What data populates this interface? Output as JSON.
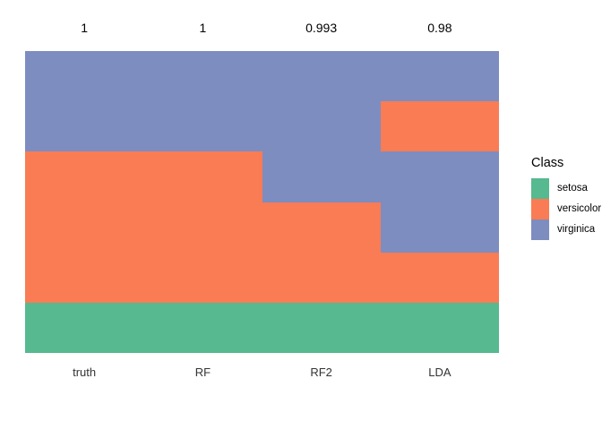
{
  "chart_data": {
    "type": "heatmap",
    "description": "Stacked categorical columns comparing true iris classes with model predictions; each column is divided vertically into colored blocks by class, with classification accuracy annotated above each column.",
    "x_categories": [
      "truth",
      "RF",
      "RF2",
      "LDA"
    ],
    "accuracy_annotations": [
      "1",
      "1",
      "0.993",
      "0.98"
    ],
    "ylim": [
      0,
      1
    ],
    "grid": "off",
    "classes": [
      {
        "name": "setosa",
        "color": "#56B98F"
      },
      {
        "name": "versicolor",
        "color": "#F97C55"
      },
      {
        "name": "virginica",
        "color": "#7D8DC0"
      }
    ],
    "columns": [
      {
        "label": "truth",
        "annotation": "1",
        "segments": [
          {
            "class": "virginica",
            "fraction": 0.3333
          },
          {
            "class": "versicolor",
            "fraction": 0.5
          },
          {
            "class": "setosa",
            "fraction": 0.1667
          }
        ]
      },
      {
        "label": "RF",
        "annotation": "1",
        "segments": [
          {
            "class": "virginica",
            "fraction": 0.3333
          },
          {
            "class": "versicolor",
            "fraction": 0.5
          },
          {
            "class": "setosa",
            "fraction": 0.1667
          }
        ]
      },
      {
        "label": "RF2",
        "annotation": "0.993",
        "segments": [
          {
            "class": "virginica",
            "fraction": 0.5
          },
          {
            "class": "versicolor",
            "fraction": 0.3333
          },
          {
            "class": "setosa",
            "fraction": 0.1667
          }
        ]
      },
      {
        "label": "LDA",
        "annotation": "0.98",
        "segments": [
          {
            "class": "virginica",
            "fraction": 0.1667
          },
          {
            "class": "versicolor",
            "fraction": 0.1666
          },
          {
            "class": "virginica",
            "fraction": 0.3334
          },
          {
            "class": "versicolor",
            "fraction": 0.1666
          },
          {
            "class": "setosa",
            "fraction": 0.1667
          }
        ]
      }
    ],
    "legend": {
      "title": "Class",
      "position": "right",
      "entries": [
        "setosa",
        "versicolor",
        "virginica"
      ]
    }
  }
}
